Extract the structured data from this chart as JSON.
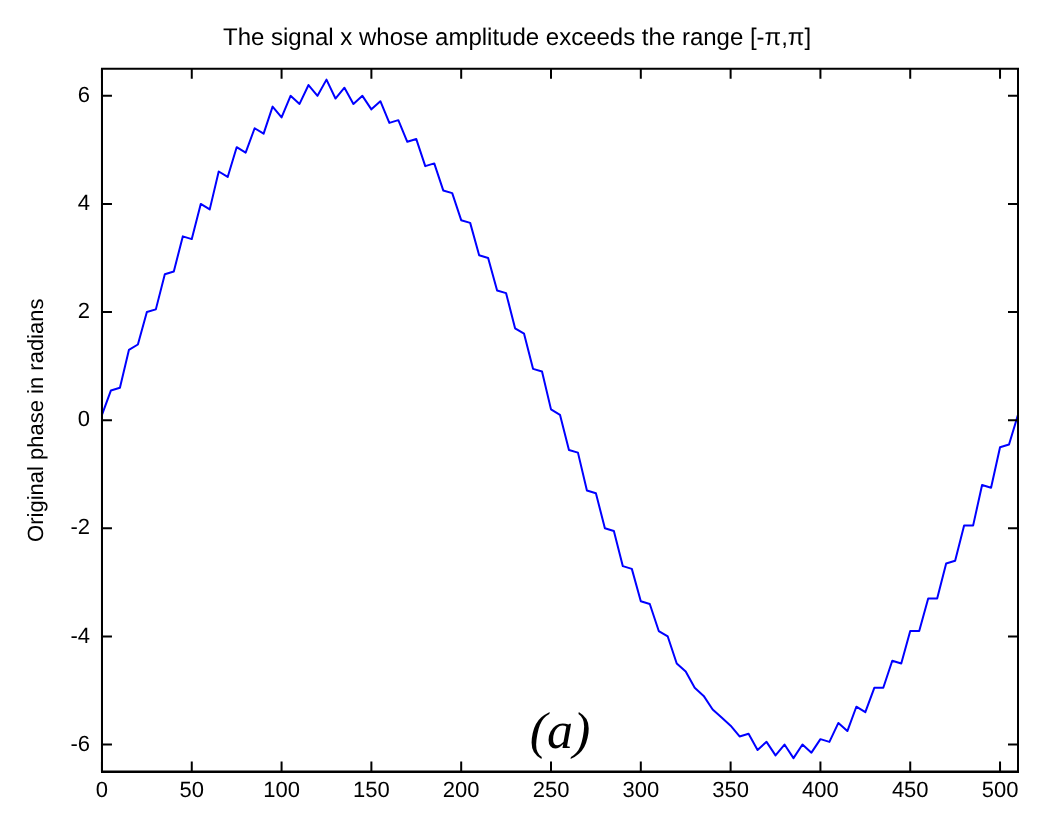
{
  "chart_data": {
    "type": "line",
    "title": "The signal x whose amplitude exceeds the range [-π,π]",
    "ylabel": "Original phase in radians",
    "annotations": [
      "(a)"
    ],
    "x": [
      0,
      5,
      10,
      15,
      20,
      25,
      30,
      35,
      40,
      45,
      50,
      55,
      60,
      65,
      70,
      75,
      80,
      85,
      90,
      95,
      100,
      105,
      110,
      115,
      120,
      125,
      130,
      135,
      140,
      145,
      150,
      155,
      160,
      165,
      170,
      175,
      180,
      185,
      190,
      195,
      200,
      205,
      210,
      215,
      220,
      225,
      230,
      235,
      240,
      245,
      250,
      255,
      260,
      265,
      270,
      275,
      280,
      285,
      290,
      295,
      300,
      305,
      310,
      315,
      320,
      325,
      330,
      335,
      340,
      345,
      350,
      355,
      360,
      365,
      370,
      375,
      380,
      385,
      390,
      395,
      400,
      405,
      410,
      415,
      420,
      425,
      430,
      435,
      440,
      445,
      450,
      455,
      460,
      465,
      470,
      475,
      480,
      485,
      490,
      495,
      500,
      505,
      510
    ],
    "series": [
      {
        "color": "#0000ff",
        "values": [
          0.1,
          0.55,
          0.6,
          1.3,
          1.4,
          2.0,
          2.05,
          2.7,
          2.75,
          3.4,
          3.35,
          4.0,
          3.9,
          4.6,
          4.5,
          5.05,
          4.95,
          5.4,
          5.3,
          5.8,
          5.6,
          6.0,
          5.85,
          6.2,
          6.0,
          6.3,
          5.95,
          6.15,
          5.85,
          6.0,
          5.75,
          5.9,
          5.5,
          5.55,
          5.15,
          5.2,
          4.7,
          4.75,
          4.25,
          4.2,
          3.7,
          3.65,
          3.05,
          3.0,
          2.4,
          2.35,
          1.7,
          1.6,
          0.95,
          0.9,
          0.2,
          0.1,
          -0.55,
          -0.6,
          -1.3,
          -1.35,
          -2.0,
          -2.05,
          -2.7,
          -2.75,
          -3.35,
          -3.4,
          -3.9,
          -4.0,
          -4.5,
          -4.65,
          -4.95,
          -5.1,
          -5.35,
          -5.5,
          -5.65,
          -5.85,
          -5.8,
          -6.1,
          -5.95,
          -6.2,
          -6.0,
          -6.25,
          -6.0,
          -6.15,
          -5.9,
          -5.95,
          -5.6,
          -5.75,
          -5.3,
          -5.4,
          -4.95,
          -4.95,
          -4.45,
          -4.5,
          -3.9,
          -3.9,
          -3.3,
          -3.3,
          -2.65,
          -2.6,
          -1.95,
          -1.95,
          -1.2,
          -1.25,
          -0.5,
          -0.45,
          0.1
        ]
      }
    ],
    "xlim": [
      0,
      510
    ],
    "ylim": [
      -6.5,
      6.5
    ],
    "xticks": [
      0,
      50,
      100,
      150,
      200,
      250,
      300,
      350,
      400,
      450,
      500
    ],
    "yticks": [
      -6,
      -4,
      -2,
      0,
      2,
      4,
      6
    ],
    "grid": false,
    "legend": false,
    "marker": "none",
    "line_style": "solid"
  }
}
